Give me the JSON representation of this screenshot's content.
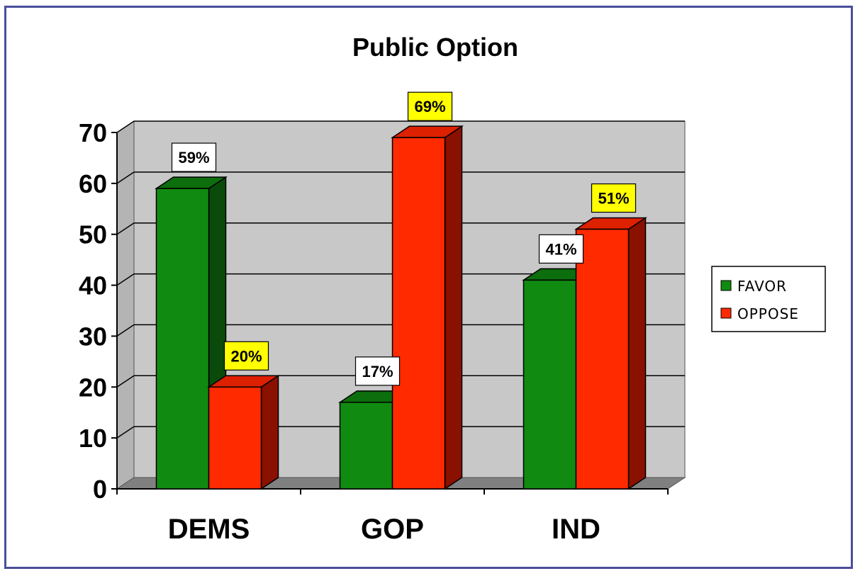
{
  "chart_data": {
    "type": "bar",
    "title": "Public Option",
    "categories": [
      "DEMS",
      "GOP",
      "IND"
    ],
    "series": [
      {
        "name": "FAVOR",
        "values": [
          59,
          17,
          41
        ],
        "labels": [
          "59%",
          "17%",
          "41%"
        ]
      },
      {
        "name": "OPPOSE",
        "values": [
          20,
          69,
          51
        ],
        "labels": [
          "20%",
          "69%",
          "51%"
        ]
      }
    ],
    "ylim": [
      0,
      70
    ],
    "yticks": [
      "0",
      "10",
      "20",
      "30",
      "40",
      "50",
      "60",
      "70"
    ],
    "grid": true,
    "legend_position": "right",
    "xlabel": "",
    "ylabel": ""
  },
  "colors": {
    "favor_front": "#118a11",
    "favor_top": "#0c6e0c",
    "favor_side": "#0a4a0a",
    "oppose_front": "#ff2a00",
    "oppose_top": "#dd2000",
    "oppose_side": "#8a1000",
    "wall": "#c8c8c8",
    "floor": "#808080",
    "favor_label_bg": "#ffffff",
    "oppose_label_bg": "#ffff00",
    "frame_border": "#4a4e9a"
  }
}
